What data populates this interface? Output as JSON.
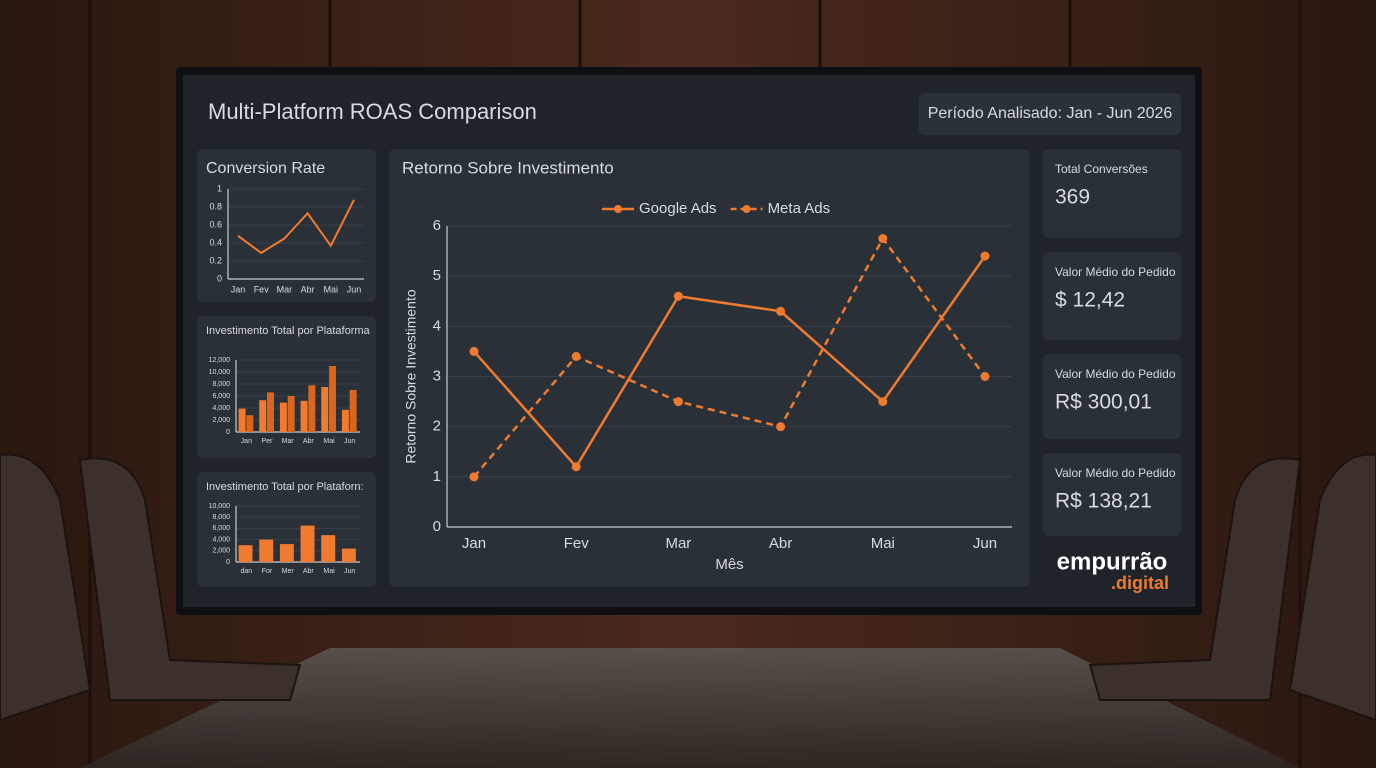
{
  "header": {
    "title": "Multi-Platform ROAS Comparison",
    "period": "Período Analisado: Jan - Jun 2026"
  },
  "chart_data": [
    {
      "type": "line",
      "title": "Conversion Rate",
      "categories": [
        "Jan",
        "Fev",
        "Mar",
        "Abr",
        "Mai",
        "Jun"
      ],
      "values": [
        0.48,
        0.29,
        0.45,
        0.73,
        0.37,
        0.88
      ],
      "color": "#f07a2e",
      "ylim": [
        0,
        1
      ],
      "yticks": [
        0,
        0.2,
        0.4,
        0.6,
        0.8,
        1
      ],
      "grid": true
    },
    {
      "type": "bar",
      "title": "Investimento Total por Plataforma",
      "categories": [
        "Jan",
        "Per",
        "Mar",
        "Abr",
        "Mai",
        "Jun"
      ],
      "series": [
        {
          "color": "#f07a2e",
          "values": [
            3900,
            5300,
            4900,
            5200,
            7500,
            3700
          ]
        },
        {
          "color": "#d9651f",
          "values": [
            2800,
            6600,
            6000,
            7800,
            11000,
            7000
          ]
        }
      ],
      "ylim": [
        0,
        12000
      ],
      "yticks": [
        0,
        {
          "value": 2000,
          "label": "2,000"
        },
        {
          "value": 4000,
          "label": "4,000"
        },
        {
          "value": 6000,
          "label": "6,000"
        },
        {
          "value": 8000,
          "label": "8,000"
        },
        {
          "value": 10000,
          "label": "10,000"
        },
        {
          "value": 12000,
          "label": "12,000"
        }
      ],
      "grid": true
    },
    {
      "type": "bar",
      "title": "Investimento Total por Plataforn:",
      "categories": [
        "dan",
        "For",
        "Mer",
        "Abr",
        "Mai",
        "Jun"
      ],
      "values": [
        3000,
        4000,
        3200,
        6500,
        4800,
        2400
      ],
      "color": "#f07a2e",
      "ylim": [
        0,
        10000
      ],
      "yticks": [
        0,
        {
          "value": 2000,
          "label": "2,000"
        },
        {
          "value": 4000,
          "label": "4,000"
        },
        {
          "value": 6000,
          "label": "6,000"
        },
        {
          "value": 8000,
          "label": "8,000"
        },
        {
          "value": 10000,
          "label": "10,000"
        }
      ],
      "grid": true
    },
    {
      "type": "line",
      "title": "Retorno Sobre Investimento",
      "x_label": "Mês",
      "y_label": "Retorno Sobre Investimento",
      "categories": [
        "Jan",
        "Fev",
        "Mar",
        "Abr",
        "Mai",
        "Jun"
      ],
      "series": [
        {
          "name": "Google Ads",
          "color": "#f07a2e",
          "dashed": false,
          "values": [
            3.5,
            1.2,
            4.6,
            4.3,
            2.5,
            5.4
          ]
        },
        {
          "name": "Meta Ads",
          "color": "#f07a2e",
          "dashed": true,
          "values": [
            1.0,
            3.4,
            2.5,
            2.0,
            5.75,
            3.0
          ]
        }
      ],
      "ylim": [
        0,
        6
      ],
      "yticks": [
        0,
        1,
        2,
        3,
        4,
        5,
        6
      ],
      "grid": true,
      "legend": "top"
    }
  ],
  "kpis": [
    {
      "label": "Total Conversões",
      "value": "369"
    },
    {
      "label": "Valor Médio do Pedido",
      "value": "$ 12,42"
    },
    {
      "label": "Valor Médio do Pedido",
      "value": "R$ 300,01"
    },
    {
      "label": "Valor Médio do Pedido",
      "value": "R$ 138,21"
    }
  ],
  "logo": {
    "name": "empurrão",
    "suffix": ".digital"
  }
}
